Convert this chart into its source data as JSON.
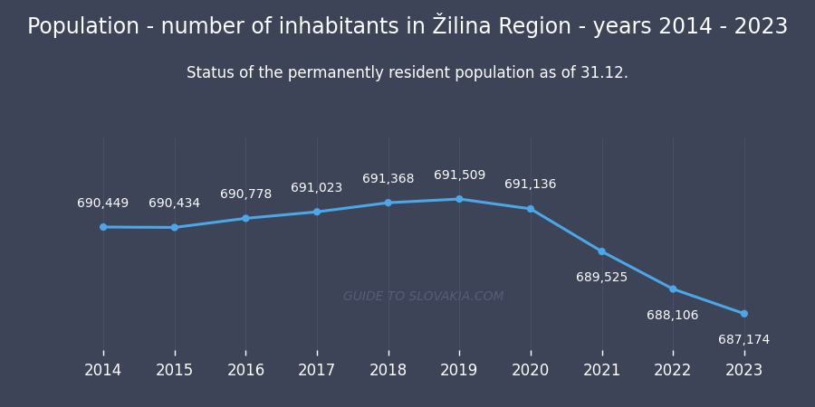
{
  "years": [
    2014,
    2015,
    2016,
    2017,
    2018,
    2019,
    2020,
    2021,
    2022,
    2023
  ],
  "values": [
    690449,
    690434,
    690778,
    691023,
    691368,
    691509,
    691136,
    689525,
    688106,
    687174
  ],
  "labels": [
    "690,449",
    "690,434",
    "690,778",
    "691,023",
    "691,368",
    "691,509",
    "691,136",
    "689,525",
    "688,106",
    "687,174"
  ],
  "title": "Population - number of inhabitants in Žilina Region - years 2014 - 2023",
  "subtitle": "Status of the permanently resident population as of 31.12.",
  "line_color": "#4da6e8",
  "marker_color": "#4da6e8",
  "bg_color": "#3d4457",
  "text_color": "#ffffff",
  "grid_color": "#4a5068",
  "watermark": "GUIDE TO SLOVAKIA.COM",
  "ylim_min": 685800,
  "ylim_max": 693800,
  "title_fontsize": 17,
  "subtitle_fontsize": 12,
  "label_fontsize": 10,
  "tick_fontsize": 12,
  "label_offsets_x": [
    0,
    0,
    0,
    0,
    0,
    0,
    0,
    0,
    0,
    0
  ],
  "label_offsets_y": [
    14,
    14,
    14,
    14,
    14,
    14,
    14,
    -16,
    -16,
    -16
  ],
  "label_ha": [
    "left",
    "left",
    "left",
    "left",
    "left",
    "left",
    "left",
    "left",
    "left",
    "left"
  ]
}
